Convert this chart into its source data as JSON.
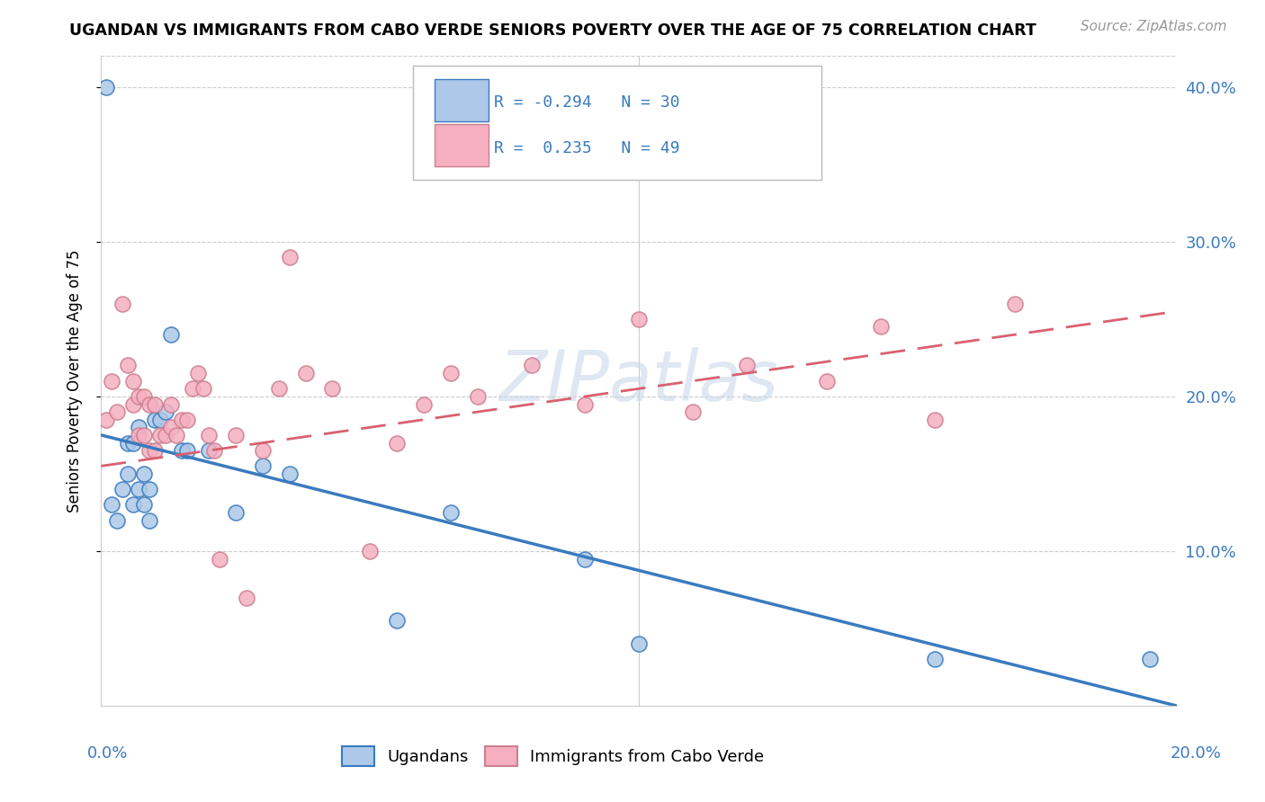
{
  "title": "UGANDAN VS IMMIGRANTS FROM CABO VERDE SENIORS POVERTY OVER THE AGE OF 75 CORRELATION CHART",
  "source": "Source: ZipAtlas.com",
  "ylabel": "Seniors Poverty Over the Age of 75",
  "ugandan_R": -0.294,
  "ugandan_N": 30,
  "caboverde_R": 0.235,
  "caboverde_N": 49,
  "ugandan_color": "#adc8e8",
  "caboverde_color": "#f5afc0",
  "ugandan_line_color": "#3a7bbf",
  "caboverde_line_color": "#d96070",
  "caboverde_line_color2": "#cc8090",
  "watermark": "ZIPatlas",
  "ugandan_x": [
    0.001,
    0.002,
    0.003,
    0.004,
    0.005,
    0.005,
    0.006,
    0.006,
    0.007,
    0.007,
    0.008,
    0.008,
    0.009,
    0.009,
    0.01,
    0.011,
    0.012,
    0.013,
    0.015,
    0.016,
    0.02,
    0.025,
    0.03,
    0.035,
    0.055,
    0.065,
    0.09,
    0.1,
    0.155,
    0.195
  ],
  "ugandan_y": [
    0.4,
    0.13,
    0.12,
    0.14,
    0.15,
    0.17,
    0.13,
    0.17,
    0.14,
    0.18,
    0.13,
    0.15,
    0.12,
    0.14,
    0.185,
    0.185,
    0.19,
    0.24,
    0.165,
    0.165,
    0.165,
    0.125,
    0.155,
    0.15,
    0.055,
    0.125,
    0.095,
    0.04,
    0.03,
    0.03
  ],
  "caboverde_x": [
    0.001,
    0.002,
    0.003,
    0.004,
    0.005,
    0.006,
    0.006,
    0.007,
    0.007,
    0.008,
    0.008,
    0.009,
    0.009,
    0.01,
    0.01,
    0.011,
    0.012,
    0.013,
    0.013,
    0.014,
    0.015,
    0.016,
    0.017,
    0.018,
    0.019,
    0.02,
    0.021,
    0.022,
    0.025,
    0.027,
    0.03,
    0.033,
    0.035,
    0.038,
    0.043,
    0.05,
    0.055,
    0.06,
    0.065,
    0.07,
    0.08,
    0.09,
    0.1,
    0.11,
    0.12,
    0.135,
    0.145,
    0.155,
    0.17
  ],
  "caboverde_y": [
    0.185,
    0.21,
    0.19,
    0.26,
    0.22,
    0.195,
    0.21,
    0.175,
    0.2,
    0.175,
    0.2,
    0.165,
    0.195,
    0.165,
    0.195,
    0.175,
    0.175,
    0.18,
    0.195,
    0.175,
    0.185,
    0.185,
    0.205,
    0.215,
    0.205,
    0.175,
    0.165,
    0.095,
    0.175,
    0.07,
    0.165,
    0.205,
    0.29,
    0.215,
    0.205,
    0.1,
    0.17,
    0.195,
    0.215,
    0.2,
    0.22,
    0.195,
    0.25,
    0.19,
    0.22,
    0.21,
    0.245,
    0.185,
    0.26
  ],
  "xlim": [
    0,
    0.2
  ],
  "ylim": [
    0,
    0.42
  ],
  "yticks": [
    0.1,
    0.2,
    0.3,
    0.4
  ],
  "ytick_labels": [
    "10.0%",
    "20.0%",
    "30.0%",
    "40.0%"
  ],
  "ugandan_line_x": [
    0.0,
    0.2
  ],
  "ugandan_line_y": [
    0.175,
    0.0
  ],
  "caboverde_line_x": [
    0.0,
    0.2
  ],
  "caboverde_line_y": [
    0.155,
    0.255
  ]
}
